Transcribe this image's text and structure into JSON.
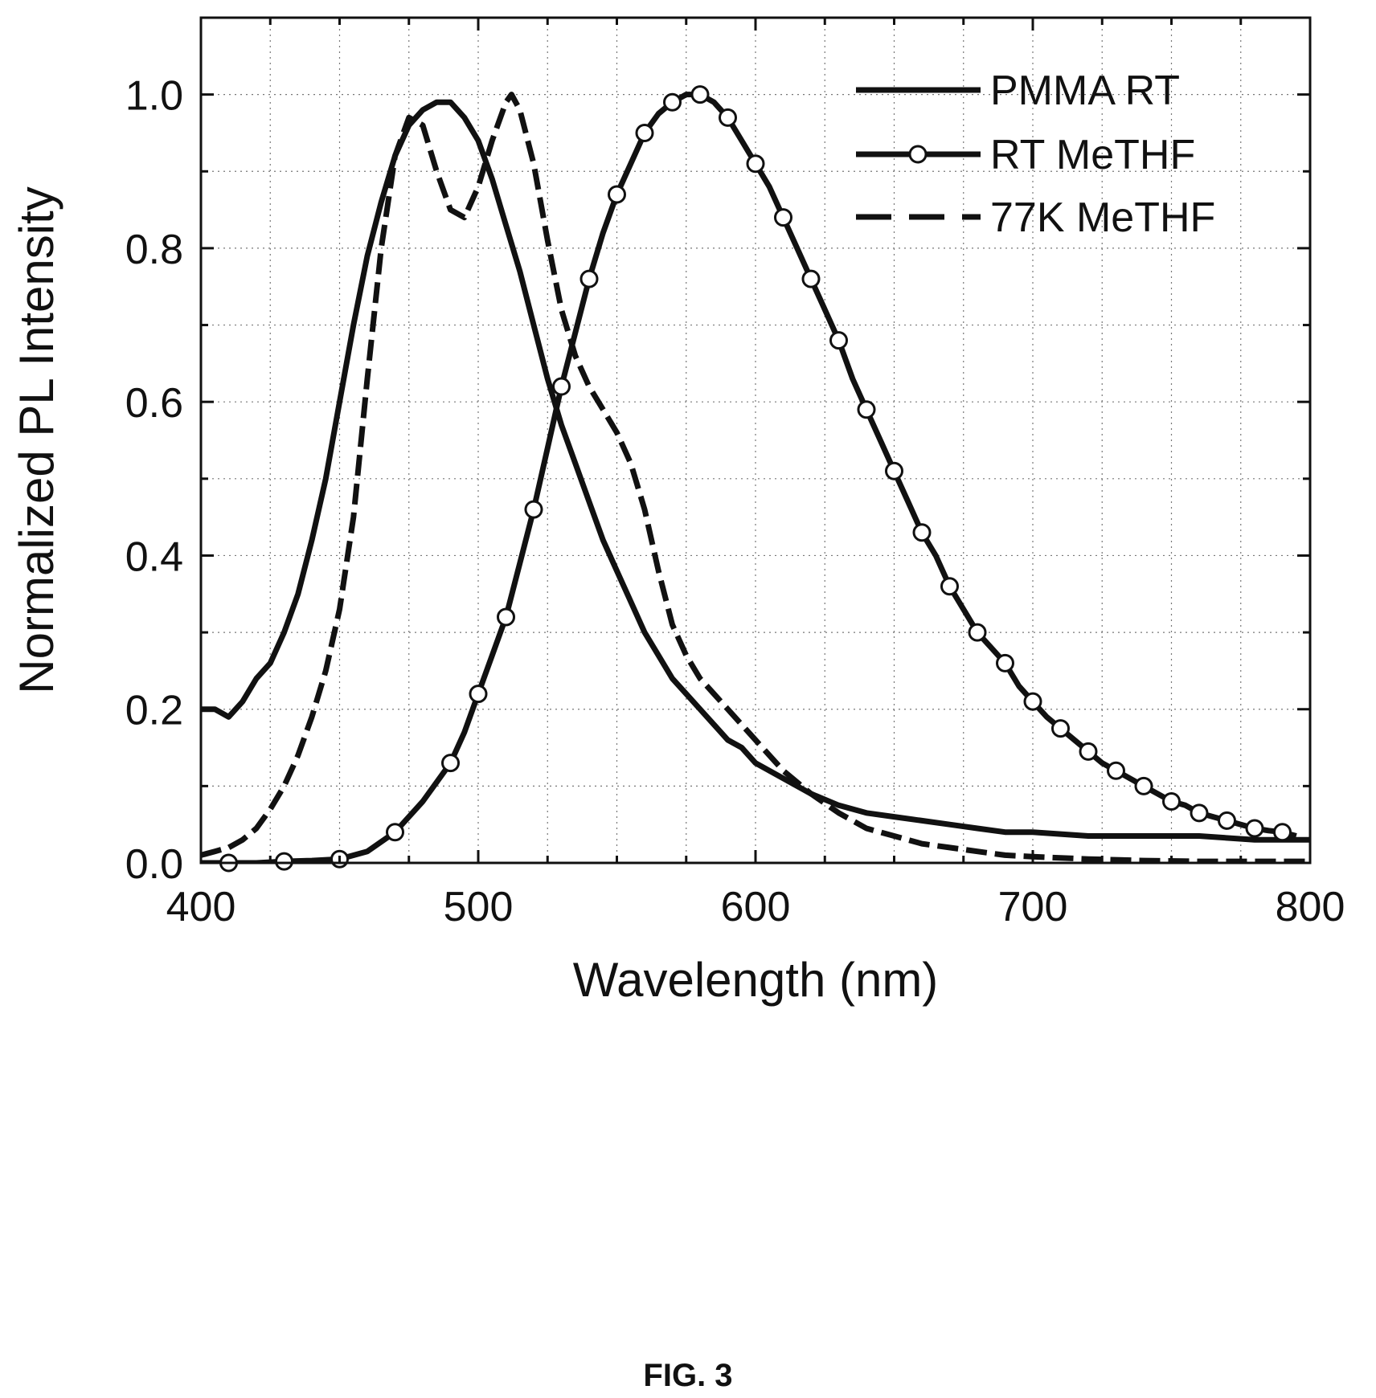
{
  "chart_data": {
    "type": "line",
    "xlabel": "Wavelength (nm)",
    "ylabel": "Normalized PL Intensity",
    "xlim": [
      400,
      800
    ],
    "ylim": [
      0,
      1.1
    ],
    "x_ticks": [
      400,
      500,
      600,
      700,
      800
    ],
    "x_tick_labels": [
      "400",
      "500",
      "600",
      "700",
      "800"
    ],
    "y_ticks": [
      0.0,
      0.2,
      0.4,
      0.6,
      0.8,
      1.0
    ],
    "y_tick_labels": [
      "0.0",
      "0.2",
      "0.4",
      "0.6",
      "0.8",
      "1.0"
    ],
    "grid": true,
    "legend_position": "top-right",
    "series": [
      {
        "name": "PMMA RT",
        "style": "solid",
        "marker": "none",
        "points": [
          [
            400,
            0.2
          ],
          [
            405,
            0.2
          ],
          [
            410,
            0.19
          ],
          [
            415,
            0.21
          ],
          [
            420,
            0.24
          ],
          [
            425,
            0.26
          ],
          [
            430,
            0.3
          ],
          [
            435,
            0.35
          ],
          [
            440,
            0.42
          ],
          [
            445,
            0.5
          ],
          [
            450,
            0.6
          ],
          [
            455,
            0.7
          ],
          [
            460,
            0.79
          ],
          [
            465,
            0.86
          ],
          [
            470,
            0.92
          ],
          [
            475,
            0.96
          ],
          [
            480,
            0.98
          ],
          [
            485,
            0.99
          ],
          [
            490,
            0.99
          ],
          [
            495,
            0.97
          ],
          [
            500,
            0.94
          ],
          [
            505,
            0.89
          ],
          [
            510,
            0.83
          ],
          [
            515,
            0.77
          ],
          [
            520,
            0.7
          ],
          [
            525,
            0.63
          ],
          [
            530,
            0.57
          ],
          [
            535,
            0.52
          ],
          [
            540,
            0.47
          ],
          [
            545,
            0.42
          ],
          [
            550,
            0.38
          ],
          [
            555,
            0.34
          ],
          [
            560,
            0.3
          ],
          [
            565,
            0.27
          ],
          [
            570,
            0.24
          ],
          [
            575,
            0.22
          ],
          [
            580,
            0.2
          ],
          [
            585,
            0.18
          ],
          [
            590,
            0.16
          ],
          [
            595,
            0.15
          ],
          [
            600,
            0.13
          ],
          [
            610,
            0.11
          ],
          [
            620,
            0.09
          ],
          [
            630,
            0.075
          ],
          [
            640,
            0.065
          ],
          [
            650,
            0.06
          ],
          [
            660,
            0.055
          ],
          [
            670,
            0.05
          ],
          [
            680,
            0.045
          ],
          [
            690,
            0.04
          ],
          [
            700,
            0.04
          ],
          [
            720,
            0.035
          ],
          [
            740,
            0.035
          ],
          [
            760,
            0.035
          ],
          [
            780,
            0.03
          ],
          [
            800,
            0.03
          ]
        ]
      },
      {
        "name": "RT MeTHF",
        "style": "solid",
        "marker": "circle",
        "points": [
          [
            400,
            0.0
          ],
          [
            410,
            0.0
          ],
          [
            420,
            0.0
          ],
          [
            430,
            0.002
          ],
          [
            440,
            0.003
          ],
          [
            450,
            0.005
          ],
          [
            460,
            0.015
          ],
          [
            470,
            0.04
          ],
          [
            480,
            0.08
          ],
          [
            490,
            0.13
          ],
          [
            495,
            0.17
          ],
          [
            500,
            0.22
          ],
          [
            505,
            0.27
          ],
          [
            510,
            0.32
          ],
          [
            515,
            0.39
          ],
          [
            520,
            0.46
          ],
          [
            525,
            0.54
          ],
          [
            530,
            0.62
          ],
          [
            535,
            0.69
          ],
          [
            540,
            0.76
          ],
          [
            545,
            0.82
          ],
          [
            550,
            0.87
          ],
          [
            555,
            0.91
          ],
          [
            560,
            0.95
          ],
          [
            565,
            0.975
          ],
          [
            570,
            0.99
          ],
          [
            575,
            1.0
          ],
          [
            580,
            1.0
          ],
          [
            585,
            0.99
          ],
          [
            590,
            0.97
          ],
          [
            595,
            0.94
          ],
          [
            600,
            0.91
          ],
          [
            605,
            0.88
          ],
          [
            610,
            0.84
          ],
          [
            615,
            0.8
          ],
          [
            620,
            0.76
          ],
          [
            625,
            0.72
          ],
          [
            630,
            0.68
          ],
          [
            635,
            0.63
          ],
          [
            640,
            0.59
          ],
          [
            645,
            0.55
          ],
          [
            650,
            0.51
          ],
          [
            655,
            0.47
          ],
          [
            660,
            0.43
          ],
          [
            665,
            0.4
          ],
          [
            670,
            0.36
          ],
          [
            675,
            0.33
          ],
          [
            680,
            0.3
          ],
          [
            685,
            0.28
          ],
          [
            690,
            0.26
          ],
          [
            695,
            0.23
          ],
          [
            700,
            0.21
          ],
          [
            705,
            0.19
          ],
          [
            710,
            0.175
          ],
          [
            715,
            0.16
          ],
          [
            720,
            0.145
          ],
          [
            725,
            0.13
          ],
          [
            730,
            0.12
          ],
          [
            735,
            0.11
          ],
          [
            740,
            0.1
          ],
          [
            745,
            0.09
          ],
          [
            750,
            0.08
          ],
          [
            755,
            0.075
          ],
          [
            760,
            0.065
          ],
          [
            765,
            0.06
          ],
          [
            770,
            0.055
          ],
          [
            775,
            0.05
          ],
          [
            780,
            0.045
          ],
          [
            785,
            0.042
          ],
          [
            790,
            0.04
          ],
          [
            795,
            0.035
          ]
        ]
      },
      {
        "name": "77K MeTHF",
        "style": "dashed",
        "marker": "none",
        "points": [
          [
            400,
            0.01
          ],
          [
            405,
            0.015
          ],
          [
            410,
            0.02
          ],
          [
            415,
            0.03
          ],
          [
            420,
            0.045
          ],
          [
            425,
            0.07
          ],
          [
            430,
            0.1
          ],
          [
            435,
            0.14
          ],
          [
            440,
            0.19
          ],
          [
            445,
            0.25
          ],
          [
            450,
            0.33
          ],
          [
            455,
            0.45
          ],
          [
            460,
            0.63
          ],
          [
            465,
            0.8
          ],
          [
            470,
            0.92
          ],
          [
            475,
            0.97
          ],
          [
            480,
            0.96
          ],
          [
            485,
            0.9
          ],
          [
            490,
            0.85
          ],
          [
            495,
            0.84
          ],
          [
            500,
            0.88
          ],
          [
            505,
            0.94
          ],
          [
            510,
            0.99
          ],
          [
            512,
            1.0
          ],
          [
            515,
            0.98
          ],
          [
            520,
            0.91
          ],
          [
            525,
            0.81
          ],
          [
            530,
            0.72
          ],
          [
            535,
            0.66
          ],
          [
            540,
            0.62
          ],
          [
            545,
            0.59
          ],
          [
            550,
            0.56
          ],
          [
            555,
            0.52
          ],
          [
            560,
            0.46
          ],
          [
            565,
            0.38
          ],
          [
            570,
            0.31
          ],
          [
            575,
            0.27
          ],
          [
            580,
            0.24
          ],
          [
            585,
            0.22
          ],
          [
            590,
            0.2
          ],
          [
            595,
            0.18
          ],
          [
            600,
            0.16
          ],
          [
            610,
            0.12
          ],
          [
            620,
            0.09
          ],
          [
            630,
            0.065
          ],
          [
            640,
            0.045
          ],
          [
            650,
            0.035
          ],
          [
            660,
            0.025
          ],
          [
            670,
            0.02
          ],
          [
            680,
            0.015
          ],
          [
            690,
            0.01
          ],
          [
            700,
            0.008
          ],
          [
            720,
            0.005
          ],
          [
            740,
            0.003
          ],
          [
            760,
            0.002
          ],
          [
            780,
            0.002
          ],
          [
            800,
            0.002
          ]
        ]
      }
    ]
  },
  "caption": "FIG. 3"
}
